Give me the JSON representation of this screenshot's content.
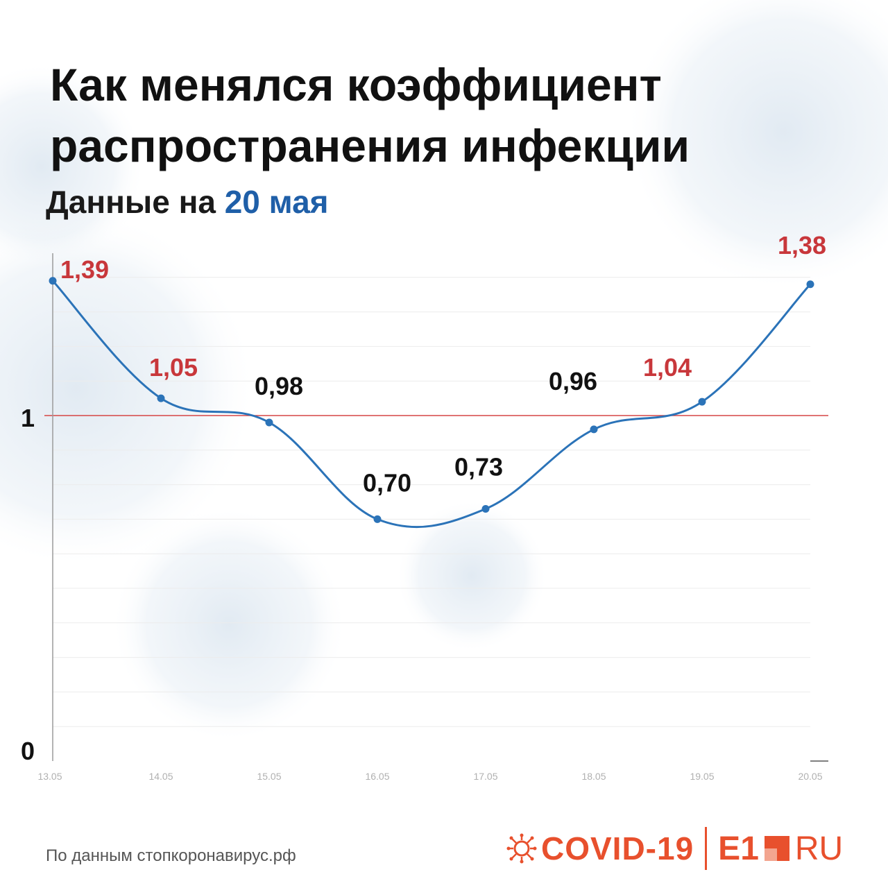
{
  "title_line1": "Как менялся коэффициент",
  "title_line2": "распространения инфекции",
  "subtitle_prefix": "Данные на",
  "subtitle_date": "20 мая",
  "source": "По данным стопкоронавирус.рф",
  "brand": {
    "covid": "COVID-19",
    "e1": "E1",
    "ru": "RU"
  },
  "colors": {
    "line": "#2b73b8",
    "threshold": "#d64545",
    "above_label": "#c8373b",
    "below_label": "#111111",
    "accent": "#1f5fa8",
    "brand": "#e8502d"
  },
  "chart_data": {
    "type": "line",
    "title": "Как менялся коэффициент распространения инфекции",
    "subtitle": "Данные на 20 мая",
    "categories": [
      "13.05",
      "14.05",
      "15.05",
      "16.05",
      "17.05",
      "18.05",
      "19.05",
      "20.05"
    ],
    "values": [
      1.39,
      1.05,
      0.98,
      0.7,
      0.73,
      0.96,
      1.04,
      1.38
    ],
    "value_labels": [
      "1,39",
      "1,05",
      "0,98",
      "0,70",
      "0,73",
      "0,96",
      "1,04",
      "1,38"
    ],
    "y_ticks": [
      {
        "value": 0,
        "label": "0"
      },
      {
        "value": 1,
        "label": "1"
      }
    ],
    "ylim": [
      0,
      1.4
    ],
    "threshold": 1,
    "grid": true,
    "legend": "none"
  }
}
